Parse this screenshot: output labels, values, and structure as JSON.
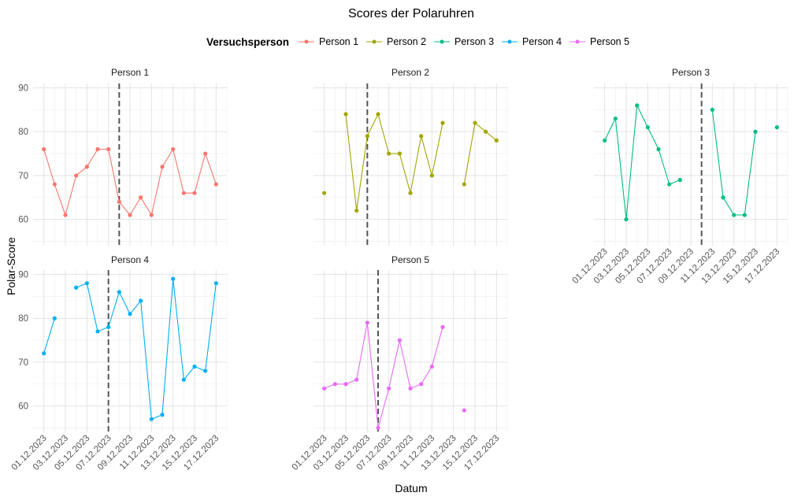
{
  "chart_data": {
    "type": "line",
    "title": "Scores der Polaruhren",
    "xlabel": "Datum",
    "ylabel": "Polar-Score",
    "ylim": [
      54,
      91
    ],
    "yticks": [
      60,
      70,
      80,
      90
    ],
    "x_range": [
      "01.12.2023",
      "18.12.2023"
    ],
    "x_ticks": [
      "01.12.2023",
      "03.12.2023",
      "05.12.2023",
      "07.12.2023",
      "09.12.2023",
      "11.12.2023",
      "13.12.2023",
      "15.12.2023",
      "17.12.2023"
    ],
    "grid": true,
    "legend": {
      "title": "Versuchsperson",
      "position": "top"
    },
    "series": [
      {
        "name": "Person 1",
        "color": "#F8766D",
        "vline": "08.12.2023",
        "points": [
          [
            "01.12.2023",
            76
          ],
          [
            "02.12.2023",
            68
          ],
          [
            "03.12.2023",
            61
          ],
          [
            "04.12.2023",
            70
          ],
          [
            "05.12.2023",
            72
          ],
          [
            "06.12.2023",
            76
          ],
          [
            "07.12.2023",
            76
          ],
          [
            "08.12.2023",
            64
          ],
          [
            "09.12.2023",
            61
          ],
          [
            "10.12.2023",
            65
          ],
          [
            "11.12.2023",
            61
          ],
          [
            "12.12.2023",
            72
          ],
          [
            "13.12.2023",
            76
          ],
          [
            "14.12.2023",
            66
          ],
          [
            "15.12.2023",
            66
          ],
          [
            "16.12.2023",
            75
          ],
          [
            "17.12.2023",
            68
          ]
        ]
      },
      {
        "name": "Person 2",
        "color": "#A3A500",
        "vline": "05.12.2023",
        "points": [
          [
            "01.12.2023",
            66
          ],
          [
            "02.12.2023",
            null
          ],
          [
            "03.12.2023",
            84
          ],
          [
            "04.12.2023",
            62
          ],
          [
            "05.12.2023",
            79
          ],
          [
            "06.12.2023",
            84
          ],
          [
            "07.12.2023",
            75
          ],
          [
            "08.12.2023",
            75
          ],
          [
            "09.12.2023",
            66
          ],
          [
            "10.12.2023",
            79
          ],
          [
            "11.12.2023",
            70
          ],
          [
            "12.12.2023",
            82
          ],
          [
            "13.12.2023",
            null
          ],
          [
            "14.12.2023",
            68
          ],
          [
            "15.12.2023",
            82
          ],
          [
            "16.12.2023",
            80
          ],
          [
            "17.12.2023",
            78
          ]
        ]
      },
      {
        "name": "Person 3",
        "color": "#00BF7D",
        "vline": "10.12.2023",
        "points": [
          [
            "01.12.2023",
            78
          ],
          [
            "02.12.2023",
            83
          ],
          [
            "03.12.2023",
            60
          ],
          [
            "04.12.2023",
            86
          ],
          [
            "05.12.2023",
            81
          ],
          [
            "06.12.2023",
            76
          ],
          [
            "07.12.2023",
            68
          ],
          [
            "08.12.2023",
            69
          ],
          [
            "09.12.2023",
            null
          ],
          [
            "10.12.2023",
            null
          ],
          [
            "11.12.2023",
            85
          ],
          [
            "12.12.2023",
            65
          ],
          [
            "13.12.2023",
            61
          ],
          [
            "14.12.2023",
            61
          ],
          [
            "15.12.2023",
            80
          ],
          [
            "16.12.2023",
            null
          ],
          [
            "17.12.2023",
            81
          ]
        ]
      },
      {
        "name": "Person 4",
        "color": "#00B0F6",
        "vline": "07.12.2023",
        "points": [
          [
            "01.12.2023",
            72
          ],
          [
            "02.12.2023",
            80
          ],
          [
            "03.12.2023",
            null
          ],
          [
            "04.12.2023",
            87
          ],
          [
            "05.12.2023",
            88
          ],
          [
            "06.12.2023",
            77
          ],
          [
            "07.12.2023",
            78
          ],
          [
            "08.12.2023",
            86
          ],
          [
            "09.12.2023",
            81
          ],
          [
            "10.12.2023",
            84
          ],
          [
            "11.12.2023",
            57
          ],
          [
            "12.12.2023",
            58
          ],
          [
            "13.12.2023",
            89
          ],
          [
            "14.12.2023",
            66
          ],
          [
            "15.12.2023",
            69
          ],
          [
            "16.12.2023",
            68
          ],
          [
            "17.12.2023",
            88
          ]
        ]
      },
      {
        "name": "Person 5",
        "color": "#E76BF3",
        "vline": "06.12.2023",
        "points": [
          [
            "01.12.2023",
            64
          ],
          [
            "02.12.2023",
            65
          ],
          [
            "03.12.2023",
            65
          ],
          [
            "04.12.2023",
            66
          ],
          [
            "05.12.2023",
            79
          ],
          [
            "06.12.2023",
            55
          ],
          [
            "07.12.2023",
            64
          ],
          [
            "08.12.2023",
            75
          ],
          [
            "09.12.2023",
            64
          ],
          [
            "10.12.2023",
            65
          ],
          [
            "11.12.2023",
            69
          ],
          [
            "12.12.2023",
            78
          ],
          [
            "13.12.2023",
            null
          ],
          [
            "14.12.2023",
            59
          ]
        ]
      }
    ]
  }
}
